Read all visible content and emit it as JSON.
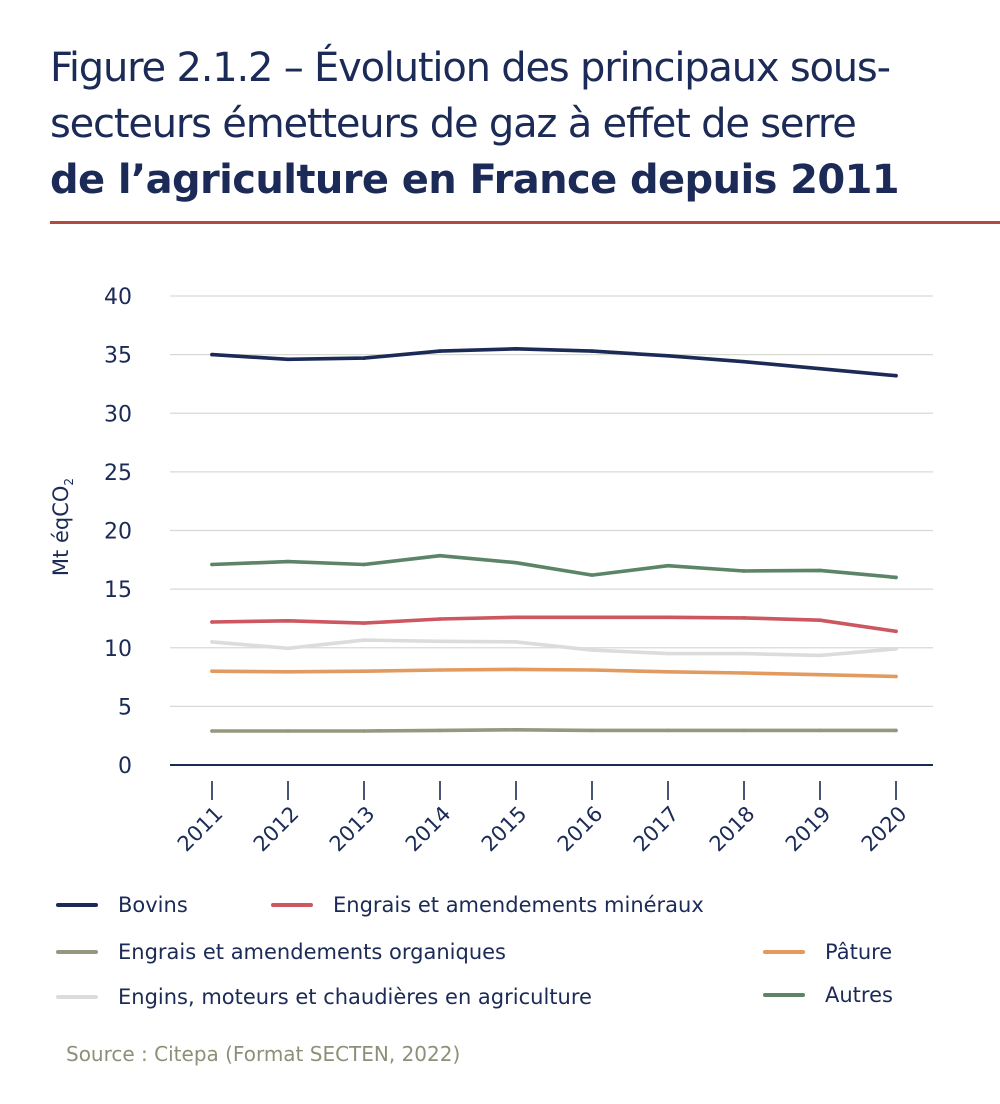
{
  "title": {
    "line1": "Figure 2.1.2 – Évolution des principaux sous-",
    "line2": "secteurs émetteurs de gaz à effet de serre",
    "line3": "de l’agriculture en France depuis 2011"
  },
  "colors": {
    "title": "#1b2a56",
    "divider": "#b34a3d",
    "grid": "#d9d9d4",
    "axis": "#1b2a56",
    "source": "#8e8f78"
  },
  "source": "Source : Citepa (Format SECTEN, 2022)",
  "chart_data": {
    "type": "line",
    "title": "Évolution des principaux sous-secteurs émetteurs de gaz à effet de serre de l’agriculture en France depuis 2011",
    "xlabel": "",
    "ylabel": "Mt éqCO",
    "ylabel_subscript": "2",
    "ylim": [
      0,
      40
    ],
    "yticks": [
      "0",
      "5",
      "10",
      "15",
      "20",
      "25",
      "30",
      "35",
      "40"
    ],
    "ytick_values": [
      0,
      5,
      10,
      15,
      20,
      25,
      30,
      35,
      40
    ],
    "grid": true,
    "legend_position": "bottom",
    "x": [
      "2011",
      "2012",
      "2013",
      "2014",
      "2015",
      "2016",
      "2017",
      "2018",
      "2019",
      "2020"
    ],
    "series": [
      {
        "name": "Bovins",
        "color": "#1b2a56",
        "values": [
          35.0,
          34.6,
          34.7,
          35.3,
          35.5,
          35.3,
          34.9,
          34.4,
          33.8,
          33.2
        ]
      },
      {
        "name": "Engrais et amendements minéraux",
        "color": "#cc5760",
        "values": [
          12.2,
          12.3,
          12.1,
          12.45,
          12.6,
          12.6,
          12.6,
          12.55,
          12.35,
          11.4
        ]
      },
      {
        "name": "Engrais et amendements organiques",
        "color": "#96977f",
        "values": [
          2.9,
          2.9,
          2.9,
          2.95,
          3.0,
          2.95,
          2.95,
          2.95,
          2.95,
          2.95
        ]
      },
      {
        "name": "Pâture",
        "color": "#e39a5f",
        "values": [
          8.0,
          7.95,
          8.0,
          8.1,
          8.15,
          8.1,
          7.95,
          7.85,
          7.7,
          7.55
        ]
      },
      {
        "name": "Engins, moteurs et chaudières en agriculture",
        "color": "#dcdcdc",
        "values": [
          10.5,
          9.95,
          10.65,
          10.55,
          10.5,
          9.8,
          9.5,
          9.5,
          9.35,
          9.9
        ]
      },
      {
        "name": "Autres",
        "color": "#5b8566",
        "values": [
          17.1,
          17.35,
          17.1,
          17.85,
          17.25,
          16.2,
          17.0,
          16.55,
          16.6,
          16.0
        ]
      }
    ]
  }
}
